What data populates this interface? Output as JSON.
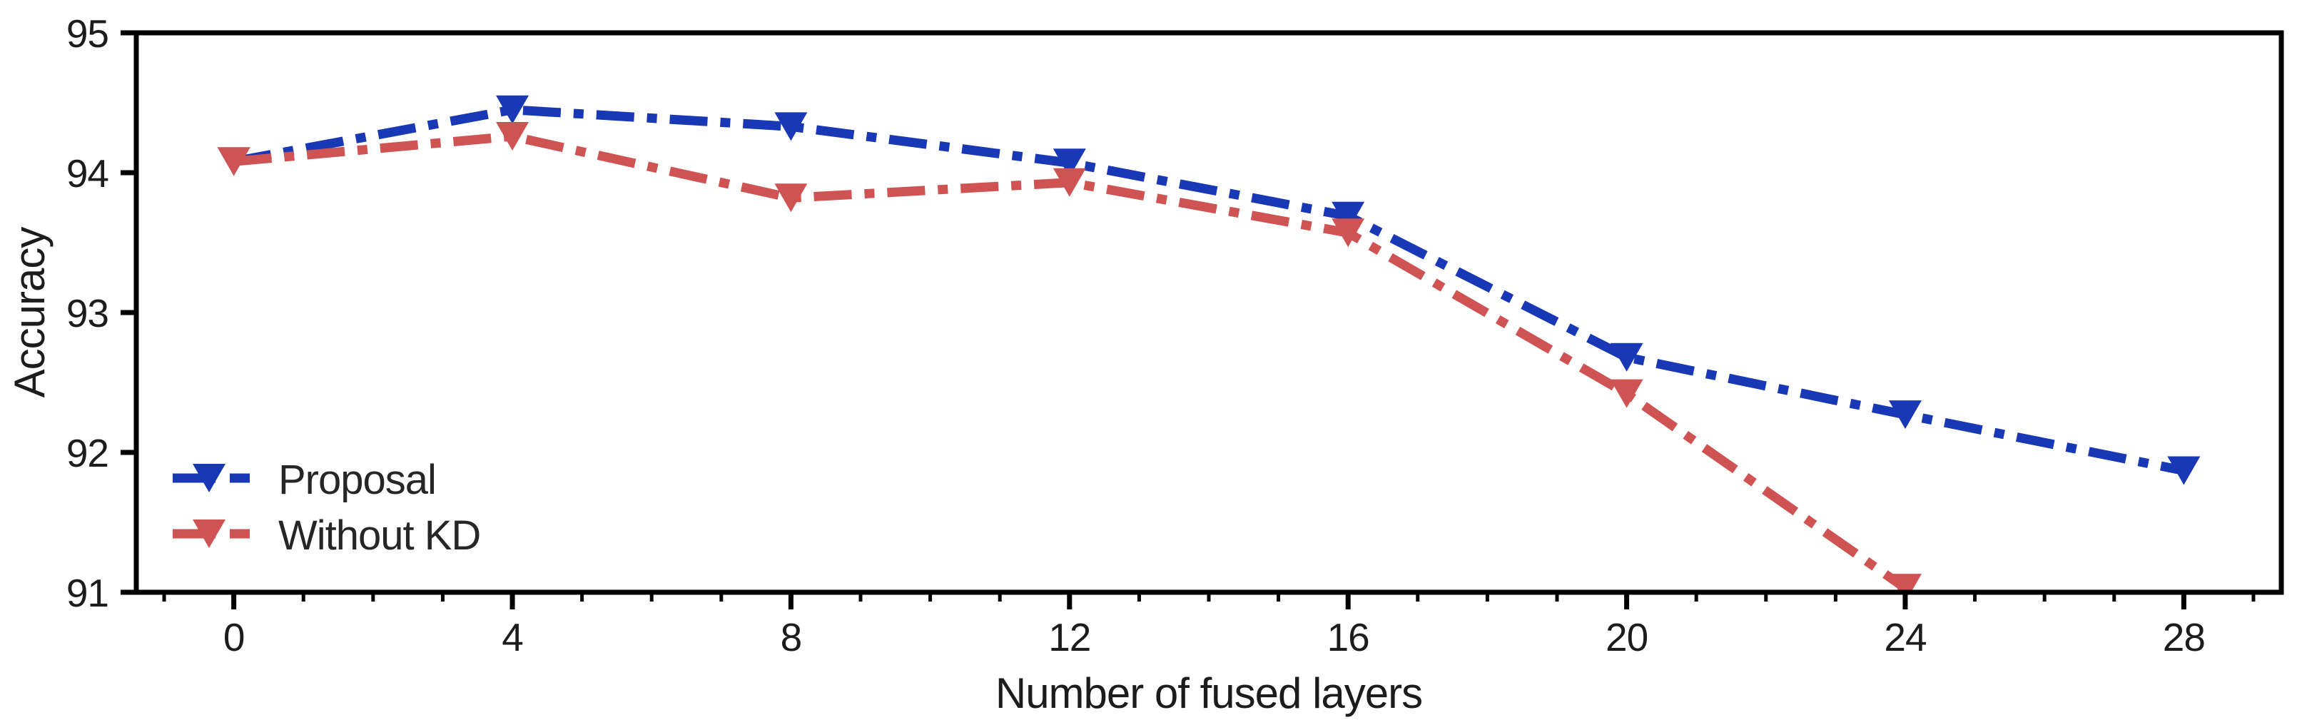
{
  "chart_data": {
    "type": "line",
    "title": "",
    "xlabel": "Number of fused layers",
    "ylabel": "Accuracy",
    "xlim": [
      -1.4,
      29.4
    ],
    "ylim": [
      91,
      95
    ],
    "xticks": [
      0,
      4,
      8,
      12,
      16,
      20,
      24,
      28
    ],
    "yticks": [
      91,
      92,
      93,
      94,
      95
    ],
    "minor_xtick_step": 1,
    "grid": false,
    "linestyle": "dash-dot",
    "marker": "triangle-down",
    "series": [
      {
        "name": "Proposal",
        "color": "#1838b5",
        "x": [
          0,
          4,
          8,
          12,
          16,
          20,
          24,
          28
        ],
        "values": [
          94.08,
          94.45,
          94.33,
          94.07,
          93.69,
          92.68,
          92.27,
          91.87
        ]
      },
      {
        "name": "Without KD",
        "color": "#d05353",
        "x": [
          0,
          4,
          8,
          12,
          16,
          20,
          24
        ],
        "values": [
          94.08,
          94.26,
          93.82,
          93.93,
          93.57,
          92.42,
          91.03
        ]
      }
    ],
    "legend": {
      "position": "lower left",
      "entries": [
        "Proposal",
        "Without KD"
      ]
    },
    "axis_color": "#000000",
    "text_color": "#1c1c1c"
  }
}
